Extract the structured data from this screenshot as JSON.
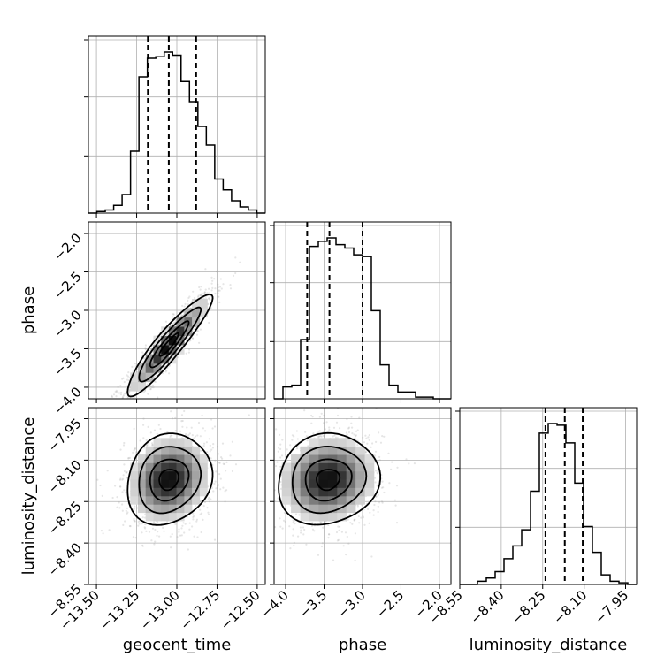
{
  "chart_data": {
    "type": "corner",
    "parameters": [
      "geocent_time",
      "phase",
      "luminosity_distance"
    ],
    "labels": {
      "geocent_time": "geocent_time",
      "phase": "phase",
      "luminosity_distance": "luminosity_distance"
    },
    "ranges": {
      "geocent_time": [
        -13.55,
        -12.45
      ],
      "phase": [
        -4.15,
        -1.85
      ],
      "luminosity_distance": [
        -8.55,
        -7.91
      ]
    },
    "ticks": {
      "geocent_time": [
        -13.5,
        -13.25,
        -13.0,
        -12.75,
        -12.5
      ],
      "phase": [
        -4.0,
        -3.5,
        -3.0,
        -2.5,
        -2.0
      ],
      "luminosity_distance": [
        -8.55,
        -8.4,
        -8.25,
        -8.1,
        -7.95
      ]
    },
    "tick_labels": {
      "geocent_time": [
        "−13.50",
        "−13.25",
        "−13.00",
        "−12.75",
        "−12.50"
      ],
      "phase": [
        "−4.0",
        "−3.5",
        "−3.0",
        "−2.5",
        "−2.0"
      ],
      "phase_y": [
        "−2.0",
        "−2.5",
        "−3.0",
        "−3.5",
        "−4.0"
      ],
      "luminosity_distance": [
        "−8.55",
        "−8.40",
        "−8.25",
        "−8.10",
        "−7.95"
      ]
    },
    "quantiles": {
      "geocent_time": [
        -13.18,
        -13.05,
        -12.88
      ],
      "phase": [
        -3.72,
        -3.43,
        -3.0
      ],
      "luminosity_distance": [
        -8.24,
        -8.17,
        -8.105
      ]
    },
    "histograms": {
      "geocent_time": {
        "range": [
          -13.55,
          -12.45
        ],
        "counts": [
          0,
          1,
          2,
          5,
          12,
          40,
          88,
          100,
          101,
          104,
          102,
          85,
          72,
          56,
          44,
          22,
          15,
          8,
          4,
          2,
          0
        ]
      },
      "phase": {
        "range": [
          -4.15,
          -1.85
        ],
        "counts": [
          0,
          7,
          8,
          35,
          90,
          93,
          95,
          91,
          89,
          85,
          84,
          52,
          20,
          8,
          4,
          4,
          1,
          1,
          0,
          0
        ]
      },
      "luminosity_distance": {
        "range": [
          -8.55,
          -7.91
        ],
        "counts": [
          0,
          0,
          2,
          4,
          8,
          16,
          24,
          34,
          58,
          94,
          100,
          99,
          88,
          63,
          36,
          20,
          6,
          2,
          1,
          0
        ]
      }
    },
    "posterior_2d": {
      "means": {
        "geocent_time": -13.05,
        "phase": -3.45,
        "luminosity_distance": -8.17
      },
      "std": {
        "geocent_time": 0.12,
        "phase": 0.3,
        "luminosity_distance": 0.075
      },
      "correlations": {
        "geocent_time__phase": 0.92,
        "geocent_time__luminosity_distance": 0.15,
        "phase__luminosity_distance": 0.1
      }
    },
    "grid": true
  }
}
